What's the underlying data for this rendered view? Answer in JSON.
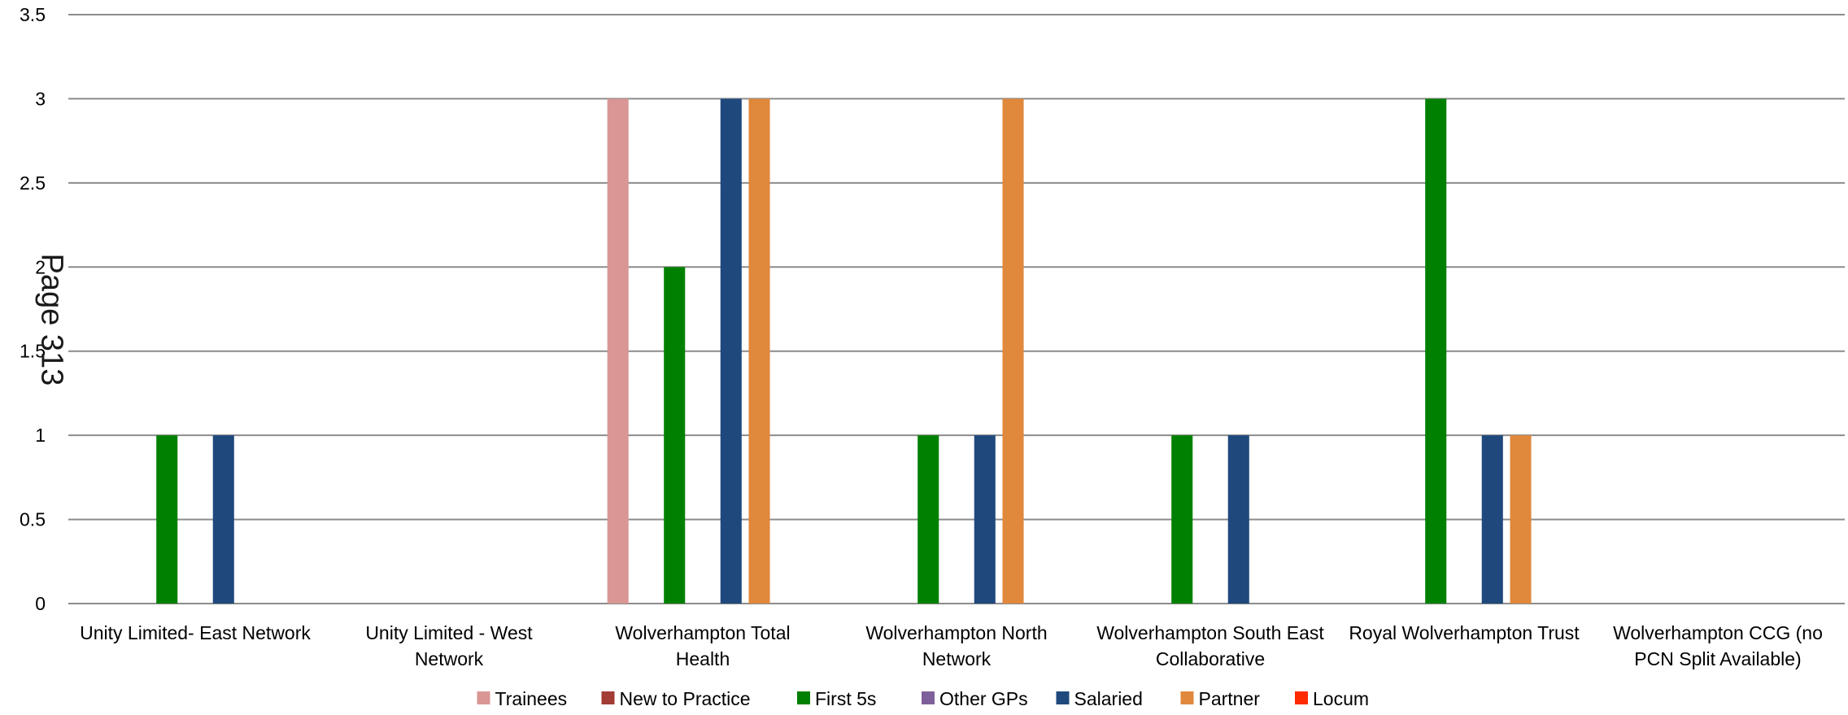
{
  "page_label": "Page 313",
  "chart_data": {
    "type": "bar",
    "categories": [
      "Unity Limited- East Network",
      "Unity Limited - West Network",
      "Wolverhampton Total Health",
      "Wolverhampton North Network",
      "Wolverhampton South East Collaborative",
      "Royal Wolverhampton Trust",
      "Wolverhampton CCG (no PCN Split Available)"
    ],
    "category_label_lines": [
      [
        "Unity Limited- East Network"
      ],
      [
        "Unity Limited - West",
        "Network"
      ],
      [
        "Wolverhampton Total",
        "Health"
      ],
      [
        "Wolverhampton North",
        "Network"
      ],
      [
        "Wolverhampton South East",
        "Collaborative"
      ],
      [
        "Royal Wolverhampton Trust"
      ],
      [
        "Wolverhampton CCG (no",
        "PCN Split Available)"
      ]
    ],
    "series": [
      {
        "name": "Trainees",
        "color": "#d99694",
        "values": [
          0,
          0,
          3,
          0,
          0,
          0,
          0
        ]
      },
      {
        "name": "New to Practice",
        "color": "#a33b36",
        "values": [
          0,
          0,
          0,
          0,
          0,
          0,
          0
        ]
      },
      {
        "name": "First 5s",
        "color": "#008000",
        "values": [
          1,
          0,
          2,
          1,
          1,
          3,
          0
        ]
      },
      {
        "name": "Other GPs",
        "color": "#7f5f9a",
        "values": [
          0,
          0,
          0,
          0,
          0,
          0,
          0
        ]
      },
      {
        "name": "Salaried",
        "color": "#1f497d",
        "values": [
          1,
          0,
          3,
          1,
          1,
          1,
          0
        ]
      },
      {
        "name": "Partner",
        "color": "#e0883c",
        "values": [
          0,
          0,
          3,
          3,
          0,
          1,
          0
        ]
      },
      {
        "name": "Locum",
        "color": "#ff2a00",
        "values": [
          0,
          0,
          0,
          0,
          0,
          0,
          0
        ]
      }
    ],
    "ylim": [
      0,
      3.5
    ],
    "yticks": [
      "0",
      "0.5",
      "1",
      "1.5",
      "2",
      "2.5",
      "3",
      "3.5"
    ],
    "grid": true,
    "legend_position": "bottom"
  }
}
